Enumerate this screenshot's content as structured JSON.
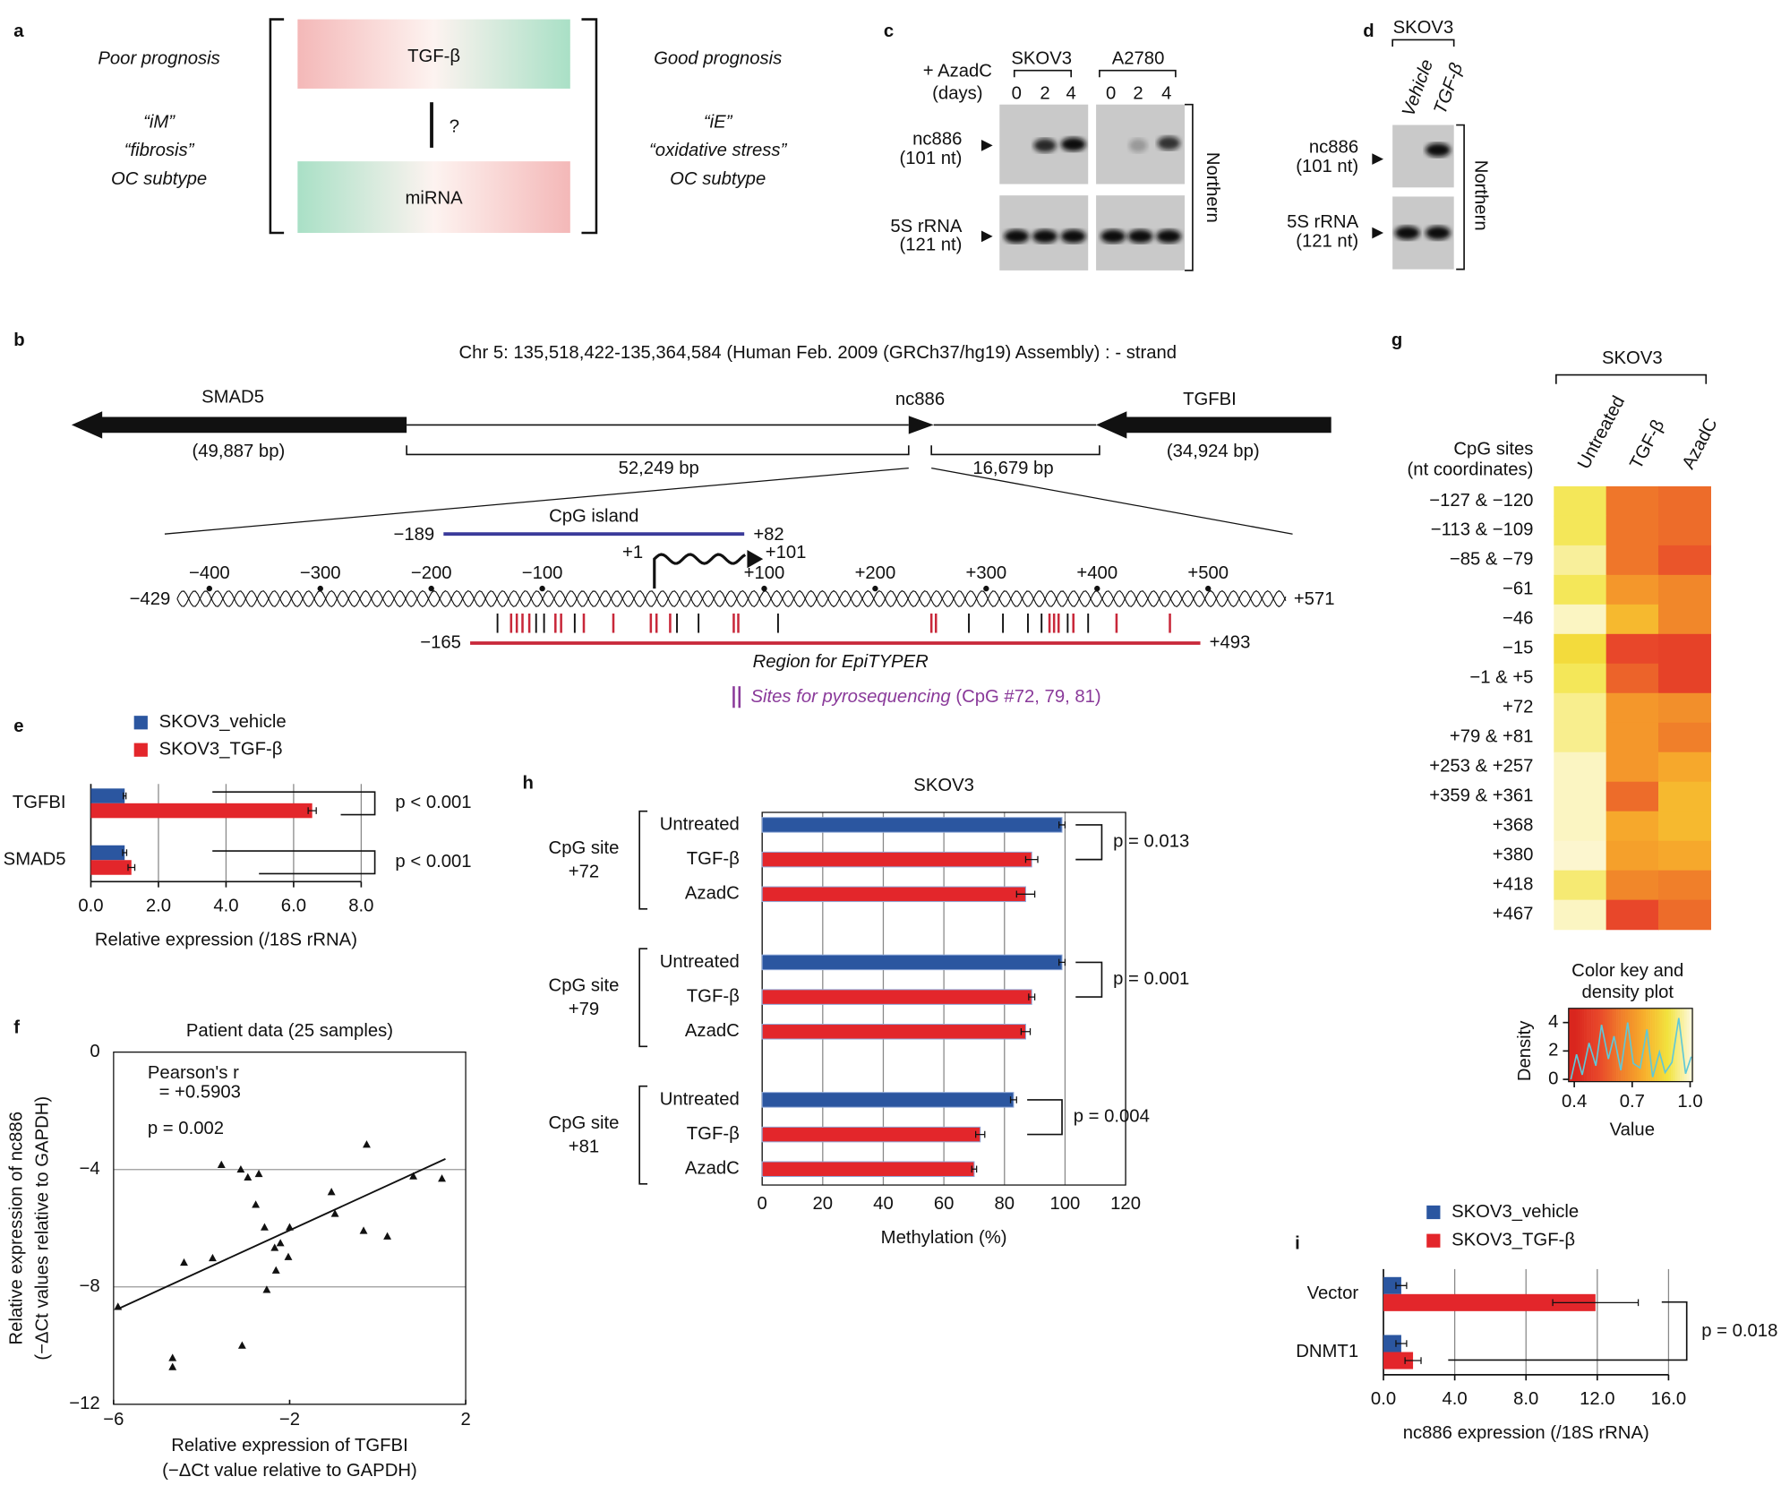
{
  "panel_labels": [
    "a",
    "b",
    "c",
    "d",
    "e",
    "f",
    "g",
    "h",
    "i"
  ],
  "diagram_a": {
    "poor": "Poor prognosis",
    "poor_lines": [
      "“iM”",
      "“fibrosis”",
      "OC subtype"
    ],
    "top": "TGF-β",
    "question": "?",
    "bottom": "miRNA",
    "good": "Good prognosis",
    "good_lines": [
      "“iE”",
      "“oxidative stress”",
      "OC subtype"
    ]
  },
  "blot_c": {
    "treatment": [
      "+ AzadC",
      "(days)"
    ],
    "cell_lines": [
      "SKOV3",
      "A2780"
    ],
    "lanes": [
      "0",
      "2",
      "4",
      "0",
      "2",
      "4"
    ],
    "rna": [
      [
        "nc886",
        "(101 nt)"
      ],
      [
        "5S rRNA",
        "(121 nt)"
      ]
    ],
    "method": "Northern"
  },
  "blot_d": {
    "cell_line": "SKOV3",
    "lanes": [
      "Vehicle",
      "TGF-β"
    ],
    "rna": [
      [
        "nc886",
        "(101 nt)"
      ],
      [
        "5S rRNA",
        "(121 nt)"
      ]
    ],
    "method": "Northern"
  },
  "gene_map": {
    "title": "Chr 5: 135,518,422-135,364,584 (Human Feb. 2009 (GRCh37/hg19) Assembly) : - strand",
    "genes": [
      {
        "name": "SMAD5",
        "size": "(49,887 bp)"
      },
      {
        "name": "nc886"
      },
      {
        "name": "TGFBI",
        "size": "(34,924 bp)"
      }
    ],
    "distances": [
      "52,249 bp",
      "16,679 bp"
    ],
    "ends": [
      {
        "value": -429,
        "label": "−429"
      },
      {
        "value": 571,
        "label": "+571"
      }
    ],
    "xticks": [
      {
        "value": -400,
        "label": "−400"
      },
      {
        "value": -300,
        "label": "−300"
      },
      {
        "value": -200,
        "label": "−200"
      },
      {
        "value": -100,
        "label": "−100"
      },
      {
        "value": 100,
        "label": "+100"
      },
      {
        "value": 200,
        "label": "+200"
      },
      {
        "value": 300,
        "label": "+300"
      },
      {
        "value": 400,
        "label": "+400"
      },
      {
        "value": 500,
        "label": "+500"
      }
    ],
    "cpg_island": {
      "name": "CpG island",
      "range": [
        {
          "value": -189,
          "label": "−189"
        },
        {
          "value": 82,
          "label": "+82"
        }
      ]
    },
    "transcript": {
      "range": [
        {
          "value": 1,
          "label": "+1"
        },
        {
          "value": 101,
          "label": "+101"
        }
      ]
    },
    "epityper": {
      "name": "Region for EpiTYPER",
      "range": [
        {
          "value": -165,
          "label": "−165"
        },
        {
          "value": 493,
          "label": "+493"
        }
      ]
    },
    "pyro": {
      "name": "Sites for pyrosequencing",
      "detail": " (CpG #72, 79, 81)"
    }
  },
  "chart_data": [
    {
      "type": "hbar",
      "categories": [
        "TGFBI",
        "SMAD5"
      ],
      "series": [
        {
          "name": "SKOV3_vehicle",
          "color": "#2b56a0",
          "values": [
            1.0,
            1.0
          ],
          "errors": [
            0.04,
            0.06
          ]
        },
        {
          "name": "SKOV3_TGF-β",
          "color": "#e3262b",
          "values": [
            6.55,
            1.2
          ],
          "errors": [
            0.12,
            0.1
          ]
        }
      ],
      "xlim": [
        0,
        8
      ],
      "xticks": [
        {
          "value": 0,
          "label": "0.0"
        },
        {
          "value": 2,
          "label": "2.0"
        },
        {
          "value": 4,
          "label": "4.0"
        },
        {
          "value": 6,
          "label": "6.0"
        },
        {
          "value": 8,
          "label": "8.0"
        }
      ],
      "xlabel": "Relative expression (/18S rRNA)",
      "annotations": [
        "p < 0.001",
        "p < 0.001"
      ],
      "grid": true
    },
    {
      "type": "scatter",
      "title": "Patient data (25 samples)",
      "x": [
        -5.9,
        -4.4,
        -3.75,
        -3.55,
        -3.11,
        -2.95,
        -2.7,
        -2.77,
        -2.57,
        -2.34,
        -2.31,
        -2.21,
        -2.03,
        -2.0,
        -2.52,
        -3.08,
        -4.66,
        -4.66,
        -1.05,
        -0.97,
        -0.25,
        -0.32,
        0.22,
        0.81,
        1.46
      ],
      "y": [
        -8.67,
        -7.16,
        -7.01,
        -3.83,
        -3.99,
        -4.26,
        -4.14,
        -5.19,
        -5.96,
        -6.66,
        -7.43,
        -6.5,
        -6.97,
        -5.96,
        -8.09,
        -9.99,
        -10.41,
        -10.72,
        -4.76,
        -5.5,
        -3.14,
        -6.08,
        -6.27,
        -4.22,
        -4.3
      ],
      "fit_line": {
        "x": [
          -5.9,
          1.54
        ],
        "y": [
          -8.75,
          -3.64
        ]
      },
      "color": "#111111",
      "xlim": [
        -6,
        2
      ],
      "xticks": [
        {
          "value": -6,
          "label": "−6"
        },
        {
          "value": -2,
          "label": "−2"
        },
        2
      ],
      "ylim": [
        -12,
        0
      ],
      "yticks": [
        0,
        {
          "value": -4,
          "label": "−4"
        },
        {
          "value": -8,
          "label": "−8"
        },
        {
          "value": -12,
          "label": "−12"
        }
      ],
      "xlabel": [
        "Relative expression of TGFBI",
        "(−ΔCt value relative to GAPDH)"
      ],
      "ylabel": [
        "Relative expression of nc886",
        "(−ΔCt values relative to GAPDH)"
      ],
      "annotations": [
        "Pearson's r",
        "= +0.5903",
        "p = 0.002"
      ],
      "grid": true
    },
    {
      "type": "grouped_hbar",
      "title": "SKOV3",
      "groups": [
        {
          "label": [
            "CpG site",
            "+72"
          ],
          "categories": [
            "Untreated",
            "TGF-β",
            "AzadC"
          ],
          "values": [
            99,
            89,
            87
          ],
          "errors": [
            1,
            2,
            3
          ],
          "colors": [
            "#2b56a0",
            "#e3262b",
            "#e3262b"
          ]
        },
        {
          "label": [
            "CpG site",
            "+79"
          ],
          "categories": [
            "Untreated",
            "TGF-β",
            "AzadC"
          ],
          "values": [
            99,
            89,
            87
          ],
          "errors": [
            1,
            1,
            1.5
          ],
          "colors": [
            "#2b56a0",
            "#e3262b",
            "#e3262b"
          ]
        },
        {
          "label": [
            "CpG site",
            "+81"
          ],
          "categories": [
            "Untreated",
            "TGF-β",
            "AzadC"
          ],
          "values": [
            83,
            72,
            70
          ],
          "errors": [
            1,
            1.5,
            0.8
          ],
          "colors": [
            "#2b56a0",
            "#e3262b",
            "#e3262b"
          ]
        }
      ],
      "xlim": [
        0,
        120
      ],
      "xticks": [
        0,
        20,
        40,
        60,
        80,
        100,
        120
      ],
      "xlabel": "Methylation (%)",
      "annotations": [
        "p = 0.013",
        "p = 0.001",
        "p = 0.004"
      ],
      "grid": true
    },
    {
      "type": "hbar",
      "categories": [
        "Vector",
        "DNMT1"
      ],
      "series": [
        {
          "name": "SKOV3_vehicle",
          "color": "#2b56a0",
          "values": [
            1.0,
            1.0
          ],
          "errors": [
            0.3,
            0.3
          ]
        },
        {
          "name": "SKOV3_TGF-β",
          "color": "#e3262b",
          "values": [
            11.9,
            1.66
          ],
          "errors": [
            2.4,
            0.45
          ]
        }
      ],
      "xlim": [
        0,
        16
      ],
      "xticks": [
        {
          "value": 0,
          "label": "0.0"
        },
        {
          "value": 4,
          "label": "4.0"
        },
        {
          "value": 8,
          "label": "8.0"
        },
        {
          "value": 12,
          "label": "12.0"
        },
        {
          "value": 16,
          "label": "16.0"
        }
      ],
      "xlabel": "nc886 expression (/18S rRNA)",
      "annotations": [
        "p = 0.018"
      ],
      "grid": true
    },
    {
      "type": "heatmap",
      "group": "SKOV3",
      "columns": [
        "Untreated",
        "TGF-β",
        "AzadC"
      ],
      "row_header": [
        "CpG sites",
        "(nt coordinates)"
      ],
      "rows": [
        "−127 & −120",
        "−113 & −109",
        "−85 & −79",
        "−61",
        "−46",
        "−15",
        "−1 & +5",
        "+72",
        "+79 & +81",
        "+253 & +257",
        "+359 & +361",
        "+368",
        "+380",
        "+418",
        "+467"
      ],
      "values": [
        [
          0.9,
          0.62,
          0.6
        ],
        [
          0.9,
          0.62,
          0.6
        ],
        [
          0.95,
          0.62,
          0.55
        ],
        [
          0.9,
          0.7,
          0.66
        ],
        [
          0.98,
          0.78,
          0.66
        ],
        [
          0.86,
          0.52,
          0.5
        ],
        [
          0.9,
          0.58,
          0.5
        ],
        [
          0.94,
          0.7,
          0.68
        ],
        [
          0.94,
          0.7,
          0.64
        ],
        [
          0.98,
          0.7,
          0.74
        ],
        [
          0.98,
          0.6,
          0.78
        ],
        [
          0.98,
          0.74,
          0.78
        ],
        [
          0.99,
          0.72,
          0.74
        ],
        [
          0.92,
          0.66,
          0.64
        ],
        [
          0.98,
          0.52,
          0.6
        ]
      ],
      "color_key": {
        "title": [
          "Color key and",
          "density plot"
        ],
        "xlabel": "Value",
        "ylabel": "Density",
        "xlim": [
          0.4,
          1.0
        ],
        "xticks": [
          0.4,
          0.7,
          {
            "value": 1,
            "label": "1.0"
          }
        ],
        "ylim": [
          0,
          5
        ],
        "yticks": [
          0,
          2,
          4
        ],
        "colors": [
          "#d9261e",
          "#e8472a",
          "#f07f2a",
          "#f7b02c",
          "#f2e33f",
          "#fdf8dc"
        ]
      }
    }
  ]
}
